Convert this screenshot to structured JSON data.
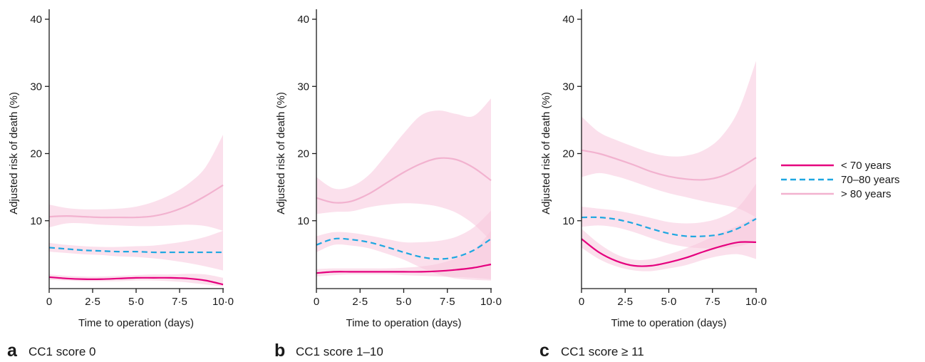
{
  "colors": {
    "lt70": "#e5007e",
    "70to80": "#1ea7e1",
    "gt80": "#f2b2cf",
    "band": "#f7c6dc",
    "axis": "#1a1a1a"
  },
  "legend": [
    {
      "label": "< 70 years",
      "series": "lt70",
      "dash": false
    },
    {
      "label": "70–80 years",
      "series": "70to80",
      "dash": true
    },
    {
      "label": "> 80 years",
      "series": "gt80",
      "dash": false
    }
  ],
  "chart_data": [
    {
      "type": "line",
      "panel_letter": "a",
      "caption": "CC1 score 0",
      "xlabel": "Time to operation (days)",
      "ylabel": "Adjusted risk of death (%)",
      "xlim": [
        0,
        10
      ],
      "ylim": [
        0,
        40
      ],
      "xticks": [
        0,
        2.5,
        5,
        7.5,
        10
      ],
      "xtick_labels": [
        "0",
        "2·5",
        "5·0",
        "7·5",
        "10·0"
      ],
      "yticks": [
        10,
        20,
        30,
        40
      ],
      "ytick_labels": [
        "10",
        "20",
        "30",
        "40"
      ],
      "x": [
        0,
        1,
        2,
        3,
        4,
        5,
        6,
        7,
        8,
        9,
        10
      ],
      "series": [
        {
          "key": "lt70",
          "values": [
            1.6,
            1.4,
            1.3,
            1.3,
            1.4,
            1.5,
            1.5,
            1.5,
            1.4,
            1.1,
            0.5
          ],
          "lower": [
            1.2,
            1.1,
            1.0,
            1.0,
            1.0,
            1.1,
            1.1,
            1.0,
            0.8,
            0.5,
            0.2
          ],
          "upper": [
            2.0,
            1.8,
            1.7,
            1.7,
            1.8,
            1.9,
            2.0,
            2.0,
            2.1,
            2.0,
            1.5
          ]
        },
        {
          "key": "70to80",
          "values": [
            6.0,
            5.8,
            5.6,
            5.5,
            5.4,
            5.4,
            5.3,
            5.3,
            5.3,
            5.3,
            5.3
          ],
          "lower": [
            5.4,
            5.2,
            5.0,
            4.9,
            4.7,
            4.6,
            4.4,
            4.1,
            3.7,
            3.2,
            2.6
          ],
          "upper": [
            6.7,
            6.4,
            6.2,
            6.1,
            6.1,
            6.2,
            6.3,
            6.6,
            7.0,
            7.6,
            8.5
          ]
        },
        {
          "key": "gt80",
          "values": [
            10.6,
            10.7,
            10.6,
            10.5,
            10.5,
            10.5,
            10.7,
            11.3,
            12.3,
            13.7,
            15.3
          ],
          "lower": [
            9.0,
            9.6,
            9.6,
            9.4,
            9.3,
            9.2,
            9.2,
            9.3,
            9.4,
            9.2,
            8.5
          ],
          "upper": [
            12.4,
            11.9,
            11.7,
            11.7,
            11.8,
            12.1,
            12.8,
            13.9,
            15.5,
            18.0,
            22.8
          ]
        }
      ]
    },
    {
      "type": "line",
      "panel_letter": "b",
      "caption": "CC1 score 1–10",
      "xlabel": "Time to operation (days)",
      "ylabel": "Adjusted risk of death (%)",
      "xlim": [
        0,
        10
      ],
      "ylim": [
        0,
        40
      ],
      "xticks": [
        0,
        2.5,
        5,
        7.5,
        10
      ],
      "xtick_labels": [
        "0",
        "2·5",
        "5·0",
        "7·5",
        "10·0"
      ],
      "yticks": [
        10,
        20,
        30,
        40
      ],
      "ytick_labels": [
        "10",
        "20",
        "30",
        "40"
      ],
      "x": [
        0,
        1,
        2,
        3,
        4,
        5,
        6,
        7,
        8,
        9,
        10
      ],
      "series": [
        {
          "key": "lt70",
          "values": [
            2.2,
            2.4,
            2.4,
            2.4,
            2.4,
            2.4,
            2.4,
            2.5,
            2.7,
            3.0,
            3.5
          ],
          "lower": [
            1.7,
            1.9,
            2.0,
            2.0,
            2.0,
            1.9,
            1.8,
            1.7,
            1.6,
            1.5,
            1.3
          ],
          "upper": [
            2.8,
            2.9,
            2.9,
            2.9,
            2.9,
            3.0,
            3.2,
            3.6,
            4.4,
            5.6,
            8.5
          ]
        },
        {
          "key": "70to80",
          "values": [
            6.4,
            7.3,
            7.2,
            6.8,
            6.1,
            5.3,
            4.6,
            4.3,
            4.6,
            5.6,
            7.3
          ],
          "lower": [
            5.3,
            6.4,
            6.3,
            5.9,
            5.1,
            4.2,
            3.0,
            2.0,
            1.4,
            1.2,
            1.1
          ],
          "upper": [
            7.7,
            8.3,
            8.2,
            7.8,
            7.3,
            6.8,
            6.8,
            7.0,
            7.6,
            9.0,
            11.5
          ]
        },
        {
          "key": "gt80",
          "values": [
            13.4,
            12.7,
            12.9,
            14.0,
            15.6,
            17.2,
            18.5,
            19.3,
            19.1,
            17.9,
            16.0
          ],
          "lower": [
            11.0,
            11.3,
            11.4,
            12.0,
            12.4,
            12.6,
            12.5,
            12.1,
            11.2,
            9.5,
            7.0
          ],
          "upper": [
            16.5,
            14.8,
            15.1,
            16.8,
            19.8,
            23.0,
            25.7,
            26.4,
            25.9,
            25.6,
            28.2
          ]
        }
      ]
    },
    {
      "type": "line",
      "panel_letter": "c",
      "caption": "CC1 score ≥ 11",
      "xlabel": "Time to operation (days)",
      "ylabel": "Adjusted risk of death (%)",
      "xlim": [
        0,
        10
      ],
      "ylim": [
        0,
        40
      ],
      "xticks": [
        0,
        2.5,
        5,
        7.5,
        10
      ],
      "xtick_labels": [
        "0",
        "2·5",
        "5·0",
        "7·5",
        "10·0"
      ],
      "yticks": [
        10,
        20,
        30,
        40
      ],
      "ytick_labels": [
        "10",
        "20",
        "30",
        "40"
      ],
      "x": [
        0,
        1,
        2,
        3,
        4,
        5,
        6,
        7,
        8,
        9,
        10
      ],
      "series": [
        {
          "key": "lt70",
          "values": [
            7.3,
            5.3,
            4.0,
            3.3,
            3.3,
            3.8,
            4.5,
            5.4,
            6.2,
            6.8,
            6.8
          ],
          "lower": [
            6.0,
            4.3,
            3.2,
            2.6,
            2.5,
            2.9,
            3.4,
            4.2,
            4.8,
            5.0,
            4.3
          ],
          "upper": [
            8.8,
            6.6,
            5.0,
            4.2,
            4.3,
            5.0,
            5.9,
            7.0,
            8.2,
            9.3,
            10.6
          ]
        },
        {
          "key": "70to80",
          "values": [
            10.5,
            10.5,
            10.2,
            9.6,
            8.8,
            8.1,
            7.7,
            7.7,
            8.0,
            8.9,
            10.3
          ],
          "lower": [
            9.1,
            9.3,
            9.0,
            8.3,
            7.4,
            6.6,
            6.1,
            5.9,
            5.9,
            6.2,
            6.9
          ],
          "upper": [
            12.1,
            11.8,
            11.5,
            11.0,
            10.4,
            9.8,
            9.6,
            9.8,
            10.5,
            12.1,
            15.5
          ]
        },
        {
          "key": "gt80",
          "values": [
            20.5,
            20.0,
            19.2,
            18.3,
            17.3,
            16.6,
            16.2,
            16.1,
            16.6,
            17.8,
            19.4
          ],
          "lower": [
            16.5,
            17.1,
            16.6,
            15.8,
            14.9,
            14.1,
            13.5,
            12.9,
            12.4,
            11.8,
            10.5
          ],
          "upper": [
            25.5,
            23.2,
            22.0,
            21.0,
            20.1,
            19.6,
            19.7,
            20.5,
            22.5,
            26.5,
            33.8
          ]
        }
      ]
    }
  ]
}
